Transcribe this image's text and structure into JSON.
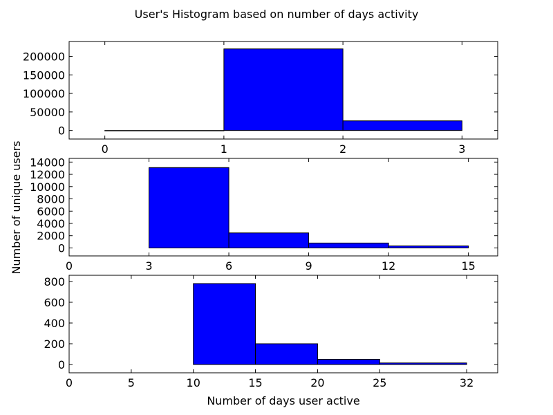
{
  "title": "User's Histogram based on number of days activity",
  "ylabel": "Number of unique users",
  "xlabel": "Number of days user active",
  "bar_color": "#0000ff",
  "chart_data": [
    {
      "type": "bar",
      "bins": [
        [
          0,
          1
        ],
        [
          1,
          2
        ],
        [
          2,
          3
        ]
      ],
      "values": [
        0,
        220000,
        26000
      ],
      "xlim": [
        -0.3,
        3.3
      ],
      "ylim": [
        -23000,
        240000
      ],
      "xticks": [
        0,
        1,
        2,
        3
      ],
      "xtick_labels": [
        "0",
        "1",
        "2",
        "3"
      ],
      "yticks": [
        0,
        50000,
        100000,
        150000,
        200000
      ],
      "ytick_labels": [
        "0",
        "50000",
        "100000",
        "150000",
        "200000"
      ]
    },
    {
      "type": "bar",
      "bins": [
        [
          3,
          6
        ],
        [
          6,
          9
        ],
        [
          9,
          12
        ],
        [
          12,
          15
        ]
      ],
      "values": [
        13100,
        2450,
        800,
        330
      ],
      "xlim": [
        0,
        16.1
      ],
      "ylim": [
        -1300,
        14600
      ],
      "xticks": [
        0,
        3,
        6,
        9,
        12,
        15
      ],
      "xtick_labels": [
        "0",
        "3",
        "6",
        "9",
        "12",
        "15"
      ],
      "yticks": [
        0,
        2000,
        4000,
        6000,
        8000,
        10000,
        12000,
        14000
      ],
      "ytick_labels": [
        "0",
        "2000",
        "4000",
        "6000",
        "8000",
        "10000",
        "12000",
        "14000"
      ]
    },
    {
      "type": "bar",
      "bins": [
        [
          10,
          15
        ],
        [
          15,
          20
        ],
        [
          20,
          25
        ],
        [
          25,
          32
        ]
      ],
      "values": [
        780,
        200,
        50,
        15
      ],
      "xlim": [
        0,
        34.5
      ],
      "ylim": [
        -80,
        860
      ],
      "xticks": [
        0,
        5,
        10,
        15,
        20,
        25,
        32
      ],
      "xtick_labels": [
        "0",
        "5",
        "10",
        "15",
        "20",
        "25",
        "32"
      ],
      "yticks": [
        0,
        200,
        400,
        600,
        800
      ],
      "ytick_labels": [
        "0",
        "200",
        "400",
        "600",
        "800"
      ]
    }
  ]
}
